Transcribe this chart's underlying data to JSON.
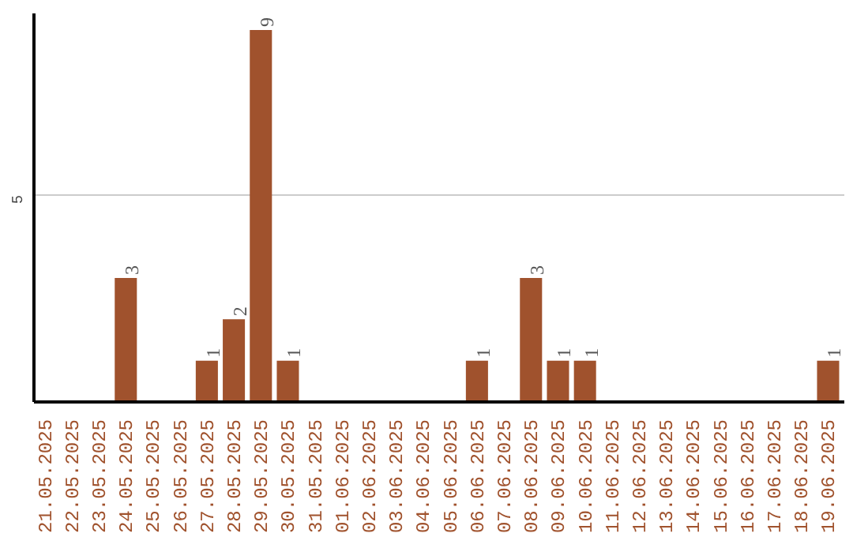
{
  "chart_data": {
    "type": "bar",
    "categories": [
      "21.05.2025",
      "22.05.2025",
      "23.05.2025",
      "24.05.2025",
      "25.05.2025",
      "26.05.2025",
      "27.05.2025",
      "28.05.2025",
      "29.05.2025",
      "30.05.2025",
      "31.05.2025",
      "01.06.2025",
      "02.06.2025",
      "03.06.2025",
      "04.06.2025",
      "05.06.2025",
      "06.06.2025",
      "07.06.2025",
      "08.06.2025",
      "09.06.2025",
      "10.06.2025",
      "11.06.2025",
      "12.06.2025",
      "13.06.2025",
      "14.06.2025",
      "15.06.2025",
      "16.06.2025",
      "17.06.2025",
      "18.06.2025",
      "19.06.2025"
    ],
    "values": [
      0,
      0,
      0,
      3,
      0,
      0,
      1,
      2,
      9,
      1,
      0,
      0,
      0,
      0,
      0,
      0,
      1,
      0,
      3,
      1,
      1,
      0,
      0,
      0,
      0,
      0,
      0,
      0,
      0,
      1
    ],
    "value_labels": [
      null,
      null,
      null,
      "3",
      null,
      null,
      "1",
      "2",
      "9",
      "1",
      null,
      null,
      null,
      null,
      null,
      null,
      "1",
      null,
      "3",
      "1",
      "1",
      null,
      null,
      null,
      null,
      null,
      null,
      null,
      null,
      "1"
    ],
    "color": "#a0522d",
    "ylim": [
      0,
      9.4
    ],
    "yticks": [
      5
    ],
    "grid": "y"
  }
}
